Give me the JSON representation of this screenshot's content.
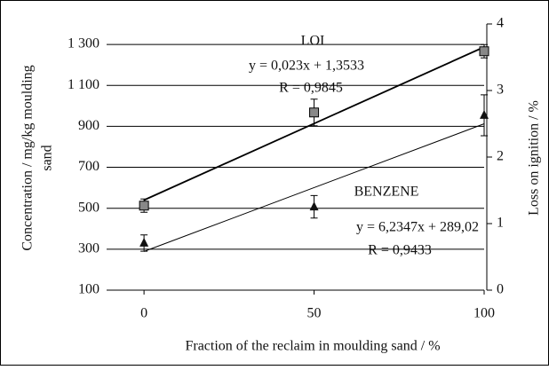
{
  "chart_data": {
    "type": "scatter",
    "xlabel": "Fraction of the reclaim in moulding sand / %",
    "ylabel": [
      "Concentration / mg/kg moulding",
      "sand"
    ],
    "y2label": "Loss on ignition / %",
    "x": [
      0,
      50,
      100
    ],
    "xlim": [
      -11,
      100
    ],
    "xticks": [
      0,
      50,
      100
    ],
    "ylim": [
      100,
      1400
    ],
    "yticks": [
      {
        "value": 100,
        "label": "100"
      },
      {
        "value": 300,
        "label": "300"
      },
      {
        "value": 500,
        "label": "500"
      },
      {
        "value": 700,
        "label": "700"
      },
      {
        "value": 900,
        "label": "900"
      },
      {
        "value": 1100,
        "label": "1 100"
      },
      {
        "value": 1300,
        "label": "1 300"
      }
    ],
    "y2lim": [
      0,
      4
    ],
    "y2ticks": [
      0,
      1,
      2,
      3,
      4
    ],
    "grid": true,
    "series": [
      {
        "name": "LOI",
        "axis": "y2",
        "marker": "square",
        "color": "#888888",
        "values": [
          1.27,
          2.67,
          3.59
        ],
        "errors": [
          0.1,
          0.2,
          0.1
        ],
        "trend": {
          "x": [
            0,
            100
          ],
          "values": [
            1.3533,
            3.6533
          ]
        },
        "equation": "y = 0,023x + 1,3533",
        "r": "R  = 0,9845"
      },
      {
        "name": "BENZENE",
        "axis": "y",
        "marker": "triangle",
        "color": "#111111",
        "values": [
          330,
          507,
          954
        ],
        "errors": [
          40,
          55,
          100
        ],
        "trend": {
          "x": [
            0,
            100
          ],
          "values": [
            289.02,
            912.49
          ]
        },
        "equation": "y = 6,2347x + 289,02",
        "r": "R  = 0,9433"
      }
    ]
  }
}
